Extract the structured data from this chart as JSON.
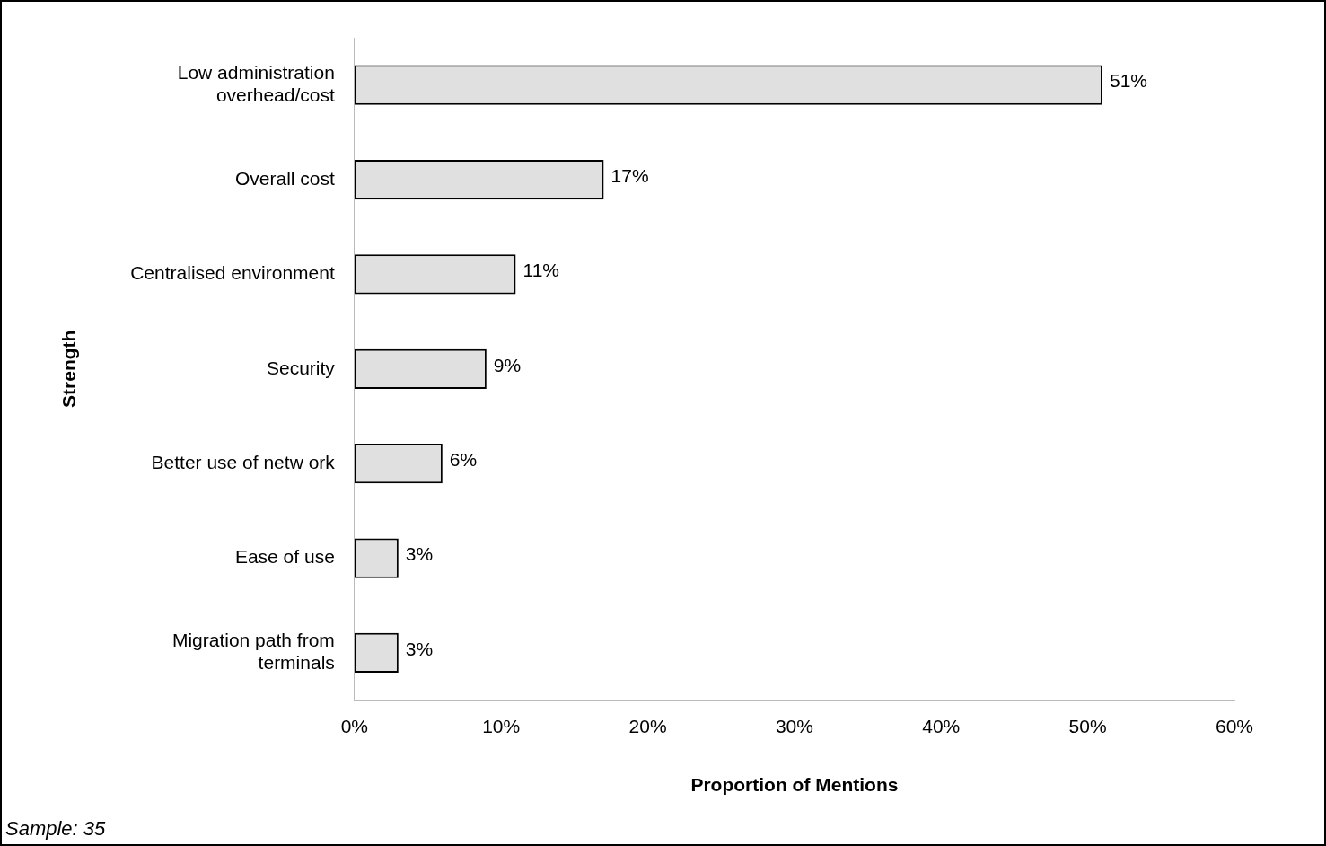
{
  "chart_data": {
    "type": "bar",
    "orientation": "horizontal",
    "xlabel": "Proportion of Mentions",
    "ylabel": "Strength",
    "categories": [
      "Low administration overhead/cost",
      "Overall cost",
      "Centralised environment",
      "Security",
      "Better use of netw ork",
      "Ease of use",
      "Migration path from terminals"
    ],
    "values": [
      51,
      17,
      11,
      9,
      6,
      3,
      3
    ],
    "value_labels": [
      "51%",
      "17%",
      "11%",
      "9%",
      "6%",
      "3%",
      "3%"
    ],
    "color": "#e0e0e0",
    "xlim": [
      0,
      60
    ],
    "xticks": [
      {
        "value": 0,
        "label": "0%"
      },
      {
        "value": 10,
        "label": "10%"
      },
      {
        "value": 20,
        "label": "20%"
      },
      {
        "value": 30,
        "label": "30%"
      },
      {
        "value": 40,
        "label": "40%"
      },
      {
        "value": 50,
        "label": "50%"
      },
      {
        "value": 60,
        "label": "60%"
      }
    ],
    "grid": false,
    "legend": false,
    "annotations": [
      "Sample: 35"
    ]
  }
}
